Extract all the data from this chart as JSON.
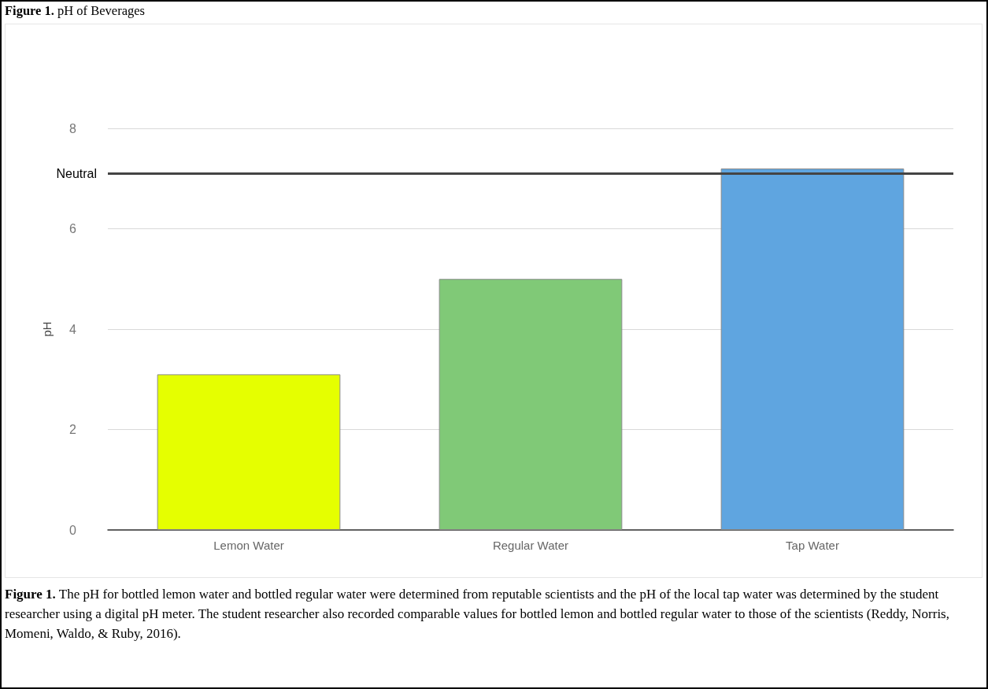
{
  "chart_data": {
    "type": "bar",
    "title": "Figure 1. pH of Beverages",
    "ylabel": "pH",
    "categories": [
      "Lemon Water",
      "Regular Water",
      "Tap Water"
    ],
    "values": [
      3.1,
      5.0,
      7.2
    ],
    "colors": [
      "#e5ff00",
      "#80c977",
      "#5fa5e0"
    ],
    "ylim": [
      0,
      8
    ],
    "yticks": [
      0,
      2,
      4,
      6,
      8
    ],
    "grid": "y",
    "ref_lines": [
      {
        "axis": "y",
        "value": 7.1,
        "label": "Neutral",
        "color": "#444444"
      }
    ],
    "annotations": [
      "Figure 1. The pH for bottled lemon water and bottled regular water were determined from reputable scientists and the pH of the local tap water was determined by the student researcher using a digital pH meter. The student researcher also recorded comparable values for bottled lemon and bottled regular water to those of the scientists (Reddy, Norris, Momeni, Waldo, & Ruby, 2016)."
    ]
  }
}
